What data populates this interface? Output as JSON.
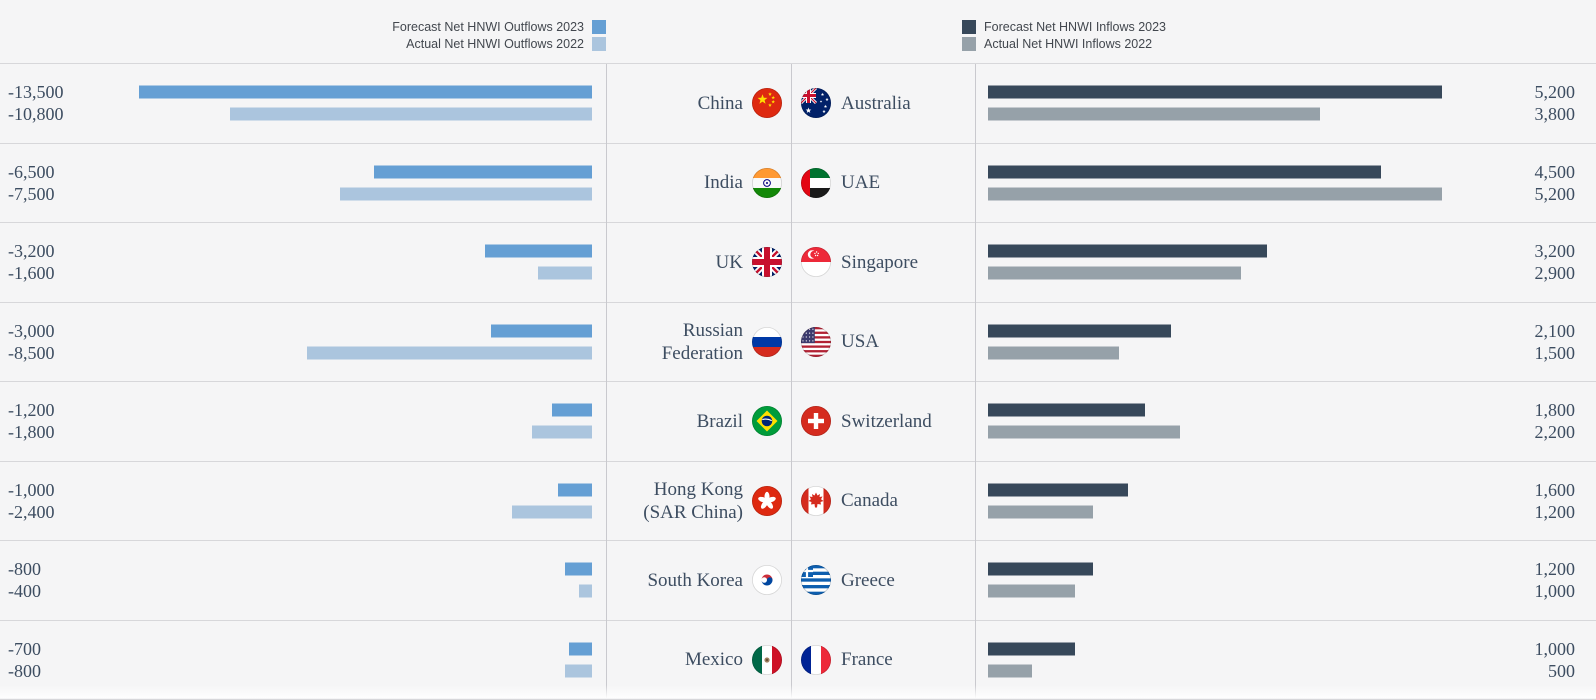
{
  "page": {
    "background": "#f5f5f6",
    "row_border_color": "#d7d7da",
    "divider_color": "#c9c9ce",
    "value_text_color": "#3d4d61",
    "legend_text_color": "#42474e"
  },
  "legend": {
    "outflows": [
      {
        "label": "Forecast Net HNWI Outflows 2023",
        "color": "#659fd4",
        "icon": "swatch-medium-blue"
      },
      {
        "label": "Actual Net HNWI Outflows 2022",
        "color": "#abc5de",
        "icon": "swatch-light-blue"
      }
    ],
    "inflows": [
      {
        "label": "Forecast Net HNWI Inflows 2023",
        "color": "#37485a",
        "icon": "swatch-dark-navy"
      },
      {
        "label": "Actual Net HNWI Inflows 2022",
        "color": "#96a1a9",
        "icon": "swatch-gray"
      }
    ]
  },
  "chart_data": {
    "type": "bar",
    "layout": "mirrored horizontal paired bars: outflow countries on the left (negative values), inflow countries on the right (positive values); each country has a 2023 forecast bar and a 2022 actual bar",
    "series": [
      {
        "name": "Forecast Net HNWI Outflows 2023",
        "side": "left",
        "color": "#659fd4"
      },
      {
        "name": "Actual Net HNWI Outflows 2022",
        "side": "left",
        "color": "#abc5de"
      },
      {
        "name": "Forecast Net HNWI Inflows 2023",
        "side": "right",
        "color": "#37485a"
      },
      {
        "name": "Actual Net HNWI Inflows 2022",
        "side": "right",
        "color": "#96a1a9"
      }
    ],
    "left_scale_max_abs": 13500,
    "right_scale_max_abs": 5200,
    "grid": "off",
    "rows": [
      {
        "outflow": {
          "country": "China",
          "flag": "cn",
          "forecast_2023": -13500,
          "actual_2022": -10800,
          "forecast_label": "-13,500",
          "actual_label": "-10,800"
        },
        "inflow": {
          "country": "Australia",
          "flag": "au",
          "forecast_2023": 5200,
          "actual_2022": 3800,
          "forecast_label": "5,200",
          "actual_label": "3,800"
        }
      },
      {
        "outflow": {
          "country": "India",
          "flag": "in",
          "forecast_2023": -6500,
          "actual_2022": -7500,
          "forecast_label": "-6,500",
          "actual_label": "-7,500"
        },
        "inflow": {
          "country": "UAE",
          "flag": "ae",
          "forecast_2023": 4500,
          "actual_2022": 5200,
          "forecast_label": "4,500",
          "actual_label": "5,200"
        }
      },
      {
        "outflow": {
          "country": "UK",
          "flag": "gb",
          "forecast_2023": -3200,
          "actual_2022": -1600,
          "forecast_label": "-3,200",
          "actual_label": "-1,600"
        },
        "inflow": {
          "country": "Singapore",
          "flag": "sg",
          "forecast_2023": 3200,
          "actual_2022": 2900,
          "forecast_label": "3,200",
          "actual_label": "2,900"
        }
      },
      {
        "outflow": {
          "country": "Russian Federation",
          "flag": "ru",
          "forecast_2023": -3000,
          "actual_2022": -8500,
          "forecast_label": "-3,000",
          "actual_label": "-8,500"
        },
        "inflow": {
          "country": "USA",
          "flag": "us",
          "forecast_2023": 2100,
          "actual_2022": 1500,
          "forecast_label": "2,100",
          "actual_label": "1,500"
        }
      },
      {
        "outflow": {
          "country": "Brazil",
          "flag": "br",
          "forecast_2023": -1200,
          "actual_2022": -1800,
          "forecast_label": "-1,200",
          "actual_label": "-1,800"
        },
        "inflow": {
          "country": "Switzerland",
          "flag": "ch",
          "forecast_2023": 1800,
          "actual_2022": 2200,
          "forecast_label": "1,800",
          "actual_label": "2,200"
        }
      },
      {
        "outflow": {
          "country": "Hong Kong (SAR China)",
          "flag": "hk",
          "forecast_2023": -1000,
          "actual_2022": -2400,
          "forecast_label": "-1,000",
          "actual_label": "-2,400"
        },
        "inflow": {
          "country": "Canada",
          "flag": "ca",
          "forecast_2023": 1600,
          "actual_2022": 1200,
          "forecast_label": "1,600",
          "actual_label": "1,200"
        }
      },
      {
        "outflow": {
          "country": "South Korea",
          "flag": "kr",
          "forecast_2023": -800,
          "actual_2022": -400,
          "forecast_label": "-800",
          "actual_label": "-400"
        },
        "inflow": {
          "country": "Greece",
          "flag": "gr",
          "forecast_2023": 1200,
          "actual_2022": 1000,
          "forecast_label": "1,200",
          "actual_label": "1,000"
        }
      },
      {
        "outflow": {
          "country": "Mexico",
          "flag": "mx",
          "forecast_2023": -700,
          "actual_2022": -800,
          "forecast_label": "-700",
          "actual_label": "-800"
        },
        "inflow": {
          "country": "France",
          "flag": "fr",
          "forecast_2023": 1000,
          "actual_2022": 500,
          "forecast_label": "1,000",
          "actual_label": "500"
        }
      }
    ]
  }
}
